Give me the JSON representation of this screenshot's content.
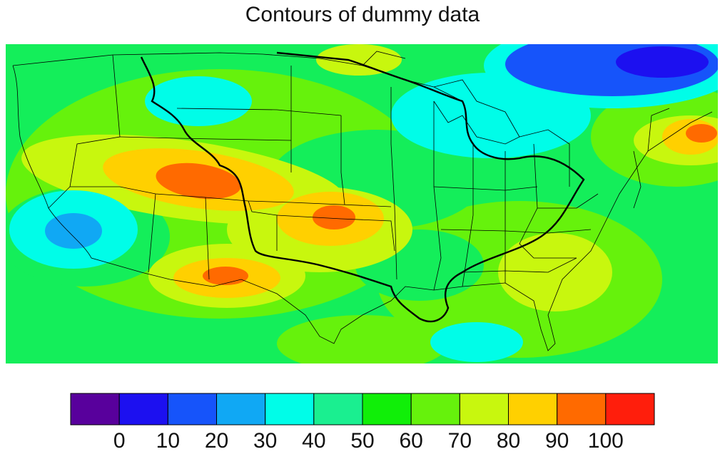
{
  "title": "Contours of dummy data",
  "colorbar": {
    "labels": [
      "0",
      "10",
      "20",
      "30",
      "40",
      "50",
      "60",
      "70",
      "80",
      "90",
      "100"
    ],
    "colors": [
      "#58009c",
      "#1c10f0",
      "#1654fa",
      "#10a8f4",
      "#00fde8",
      "#1aef90",
      "#10ef08",
      "#66f20c",
      "#c8f70e",
      "#ffd000",
      "#ff6a00",
      "#ff1e0c"
    ]
  },
  "map": {
    "background_color": "#14ee5a",
    "region": "Contiguous United States",
    "variable": "dummy data",
    "field_range": [
      0,
      100
    ],
    "contour_interval": 10,
    "features": [
      {
        "name": "low-center-northeast-canada",
        "value_range": [
          10,
          20
        ]
      },
      {
        "name": "high-center-colorado-utah",
        "value_range": [
          90,
          100
        ]
      },
      {
        "name": "high-center-oklahoma",
        "value_range": [
          90,
          100
        ]
      },
      {
        "name": "high-center-arizona-nm",
        "value_range": [
          90,
          100
        ]
      },
      {
        "name": "high-center-new-england",
        "value_range": [
          90,
          100
        ]
      },
      {
        "name": "low-center-southern-california",
        "value_range": [
          20,
          30
        ]
      }
    ]
  }
}
